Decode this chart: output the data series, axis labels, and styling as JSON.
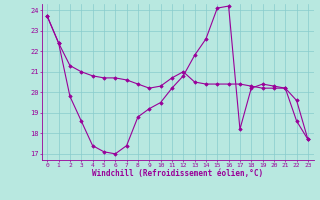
{
  "xlabel": "Windchill (Refroidissement éolien,°C)",
  "xlim": [
    -0.5,
    23.5
  ],
  "ylim": [
    16.7,
    24.3
  ],
  "yticks": [
    17,
    18,
    19,
    20,
    21,
    22,
    23,
    24
  ],
  "xticks": [
    0,
    1,
    2,
    3,
    4,
    5,
    6,
    7,
    8,
    9,
    10,
    11,
    12,
    13,
    14,
    15,
    16,
    17,
    18,
    19,
    20,
    21,
    22,
    23
  ],
  "background_color": "#b8e8e0",
  "grid_color": "#88cccc",
  "line_color": "#990099",
  "series1_x": [
    0,
    1,
    2,
    3,
    4,
    5,
    6,
    7,
    8,
    9,
    10,
    11,
    12,
    13,
    14,
    15,
    16,
    17,
    18,
    19,
    20,
    21,
    22,
    23
  ],
  "series1_y": [
    23.7,
    22.4,
    21.3,
    21.0,
    20.8,
    20.7,
    20.7,
    20.6,
    20.4,
    20.2,
    20.3,
    20.7,
    21.0,
    20.5,
    20.4,
    20.4,
    20.4,
    20.4,
    20.3,
    20.2,
    20.2,
    20.2,
    19.6,
    17.7
  ],
  "series2_x": [
    0,
    1,
    2,
    3,
    4,
    5,
    6,
    7,
    8,
    9,
    10,
    11,
    12,
    13,
    14,
    15,
    16,
    17,
    18,
    19,
    20,
    21,
    22,
    23
  ],
  "series2_y": [
    23.7,
    22.4,
    19.8,
    18.6,
    17.4,
    17.1,
    17.0,
    17.4,
    18.8,
    19.2,
    19.5,
    20.2,
    20.8,
    21.8,
    22.6,
    24.1,
    24.2,
    18.2,
    20.2,
    20.4,
    20.3,
    20.2,
    18.6,
    17.7
  ]
}
